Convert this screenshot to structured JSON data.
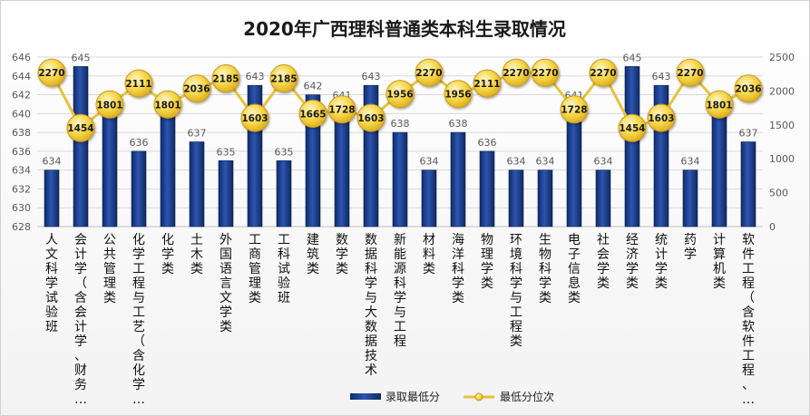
{
  "chart_data": {
    "type": "bar",
    "title": "2020年广西理科普通类本科生录取情况",
    "categories": [
      "人文科学试验班",
      "会计学（含会计学、财务…",
      "公共管理类",
      "化学工程与工艺（含化学…",
      "化学类",
      "土木类",
      "外国语言文学类",
      "工商管理类",
      "工科试验班",
      "建筑类",
      "数学类",
      "数据科学与大数据技术",
      "新能源科学与工程",
      "材料类",
      "海洋科学类",
      "物理学类",
      "环境科学与工程类",
      "生物科学类",
      "电子信息类",
      "社会学类",
      "经济学类",
      "统计学类",
      "药学",
      "计算机类",
      "软件工程（含软件工程、…"
    ],
    "series": [
      {
        "name": "录取最低分",
        "type": "bar",
        "axis": "left",
        "color": "#1f3f8f",
        "values": [
          634,
          645,
          640,
          636,
          640,
          637,
          635,
          643,
          635,
          642,
          641,
          643,
          638,
          634,
          638,
          636,
          634,
          634,
          641,
          634,
          645,
          643,
          634,
          640,
          637
        ]
      },
      {
        "name": "最低分位次",
        "type": "line",
        "axis": "right",
        "color": "#f2cc3a",
        "values": [
          2270,
          1454,
          1801,
          2111,
          1801,
          2036,
          2185,
          1603,
          2185,
          1665,
          1728,
          1603,
          1956,
          2270,
          1956,
          2111,
          2270,
          2270,
          1728,
          2270,
          1454,
          1603,
          2270,
          1801,
          2036
        ]
      }
    ],
    "y_left": {
      "min": 628,
      "max": 646,
      "ticks": [
        628,
        630,
        632,
        634,
        636,
        638,
        640,
        642,
        644,
        646
      ]
    },
    "y_right": {
      "min": 0,
      "max": 2500,
      "ticks": [
        0,
        500,
        1000,
        1500,
        2000,
        2500
      ]
    },
    "grid": true,
    "legend": "bottom"
  }
}
